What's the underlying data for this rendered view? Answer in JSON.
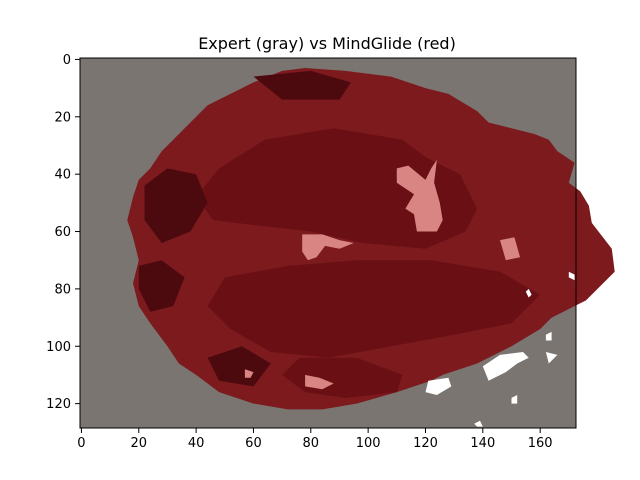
{
  "chart_data": {
    "type": "heatmap",
    "title": "Expert (gray) vs MindGlide (red)",
    "xlabel": "",
    "ylabel": "",
    "xlim": [
      -0.5,
      172.5
    ],
    "ylim": [
      128.5,
      -0.5
    ],
    "x_ticks": [
      0,
      20,
      40,
      60,
      80,
      100,
      120,
      140,
      160
    ],
    "y_ticks": [
      0,
      20,
      40,
      60,
      80,
      100,
      120
    ],
    "grid": false,
    "colors": {
      "background": "#7a7571",
      "dark_red": "#4d0a0e",
      "mid_red": "#6a1015",
      "light_red": "#7c1a1e",
      "pink": "#d88584",
      "white": "#ffffff"
    },
    "brain_outline": [
      [
        78,
        3
      ],
      [
        92,
        4
      ],
      [
        108,
        6
      ],
      [
        120,
        10
      ],
      [
        128,
        12
      ],
      [
        138,
        18
      ],
      [
        142,
        22
      ],
      [
        158,
        26
      ],
      [
        163,
        28
      ],
      [
        166,
        32
      ],
      [
        172,
        36
      ],
      [
        170,
        43
      ],
      [
        174,
        46
      ],
      [
        177,
        51
      ],
      [
        178,
        57
      ],
      [
        185,
        66
      ],
      [
        186,
        74
      ],
      [
        176,
        84
      ],
      [
        164,
        90
      ],
      [
        160,
        94
      ],
      [
        150,
        100
      ],
      [
        138,
        106
      ],
      [
        126,
        110
      ],
      [
        122,
        112
      ],
      [
        110,
        116
      ],
      [
        96,
        120
      ],
      [
        84,
        122
      ],
      [
        72,
        122
      ],
      [
        60,
        120
      ],
      [
        48,
        116
      ],
      [
        40,
        110
      ],
      [
        34,
        106
      ],
      [
        30,
        100
      ],
      [
        24,
        92
      ],
      [
        20,
        86
      ],
      [
        18,
        78
      ],
      [
        20,
        70
      ],
      [
        18,
        62
      ],
      [
        16,
        56
      ],
      [
        18,
        48
      ],
      [
        20,
        42
      ],
      [
        24,
        38
      ],
      [
        28,
        32
      ],
      [
        32,
        28
      ],
      [
        38,
        22
      ],
      [
        44,
        16
      ],
      [
        52,
        12
      ],
      [
        60,
        8
      ],
      [
        70,
        4
      ]
    ],
    "mid_red_regions": [
      [
        [
          64,
          28
        ],
        [
          88,
          24
        ],
        [
          112,
          28
        ],
        [
          120,
          34
        ],
        [
          132,
          40
        ],
        [
          138,
          52
        ],
        [
          134,
          60
        ],
        [
          120,
          66
        ],
        [
          98,
          64
        ],
        [
          80,
          60
        ],
        [
          62,
          58
        ],
        [
          46,
          56
        ],
        [
          40,
          48
        ],
        [
          48,
          38
        ]
      ],
      [
        [
          50,
          76
        ],
        [
          72,
          72
        ],
        [
          96,
          70
        ],
        [
          122,
          70
        ],
        [
          146,
          74
        ],
        [
          160,
          82
        ],
        [
          150,
          92
        ],
        [
          130,
          96
        ],
        [
          108,
          100
        ],
        [
          86,
          104
        ],
        [
          66,
          102
        ],
        [
          52,
          94
        ],
        [
          44,
          86
        ]
      ],
      [
        [
          76,
          104
        ],
        [
          96,
          104
        ],
        [
          112,
          110
        ],
        [
          110,
          116
        ],
        [
          92,
          118
        ],
        [
          78,
          116
        ],
        [
          70,
          110
        ]
      ]
    ],
    "dark_red_regions": [
      [
        [
          22,
          44
        ],
        [
          30,
          38
        ],
        [
          40,
          40
        ],
        [
          44,
          50
        ],
        [
          38,
          60
        ],
        [
          28,
          64
        ],
        [
          22,
          56
        ]
      ],
      [
        [
          20,
          72
        ],
        [
          28,
          70
        ],
        [
          36,
          76
        ],
        [
          32,
          86
        ],
        [
          24,
          88
        ],
        [
          20,
          80
        ]
      ],
      [
        [
          44,
          104
        ],
        [
          56,
          100
        ],
        [
          66,
          106
        ],
        [
          60,
          114
        ],
        [
          48,
          112
        ]
      ],
      [
        [
          60,
          6
        ],
        [
          80,
          4
        ],
        [
          94,
          8
        ],
        [
          90,
          14
        ],
        [
          70,
          14
        ]
      ]
    ],
    "pink_regions": [
      [
        [
          114,
          37
        ],
        [
          120,
          42
        ],
        [
          122,
          38
        ],
        [
          124,
          35
        ],
        [
          123,
          43
        ],
        [
          125,
          50
        ],
        [
          126,
          56
        ],
        [
          124,
          60
        ],
        [
          117,
          60
        ],
        [
          116,
          54
        ],
        [
          113,
          52
        ],
        [
          116,
          47
        ],
        [
          110,
          43
        ],
        [
          110,
          38
        ]
      ],
      [
        [
          77,
          61
        ],
        [
          84,
          61
        ],
        [
          90,
          63
        ],
        [
          95,
          64
        ],
        [
          90,
          66
        ],
        [
          85,
          65
        ],
        [
          82,
          69
        ],
        [
          79,
          70
        ],
        [
          77,
          67
        ]
      ],
      [
        [
          146,
          63
        ],
        [
          151,
          62
        ],
        [
          153,
          69
        ],
        [
          148,
          70
        ]
      ],
      [
        [
          78,
          110
        ],
        [
          83,
          111
        ],
        [
          88,
          113
        ],
        [
          84,
          115
        ],
        [
          78,
          114
        ]
      ],
      [
        [
          57,
          108
        ],
        [
          60,
          109
        ],
        [
          59,
          111
        ],
        [
          57,
          111
        ]
      ]
    ],
    "white_regions": [
      [
        [
          140,
          107
        ],
        [
          146,
          103
        ],
        [
          154,
          102
        ],
        [
          156,
          104
        ],
        [
          152,
          106
        ],
        [
          148,
          109
        ],
        [
          142,
          112
        ]
      ],
      [
        [
          121,
          112
        ],
        [
          128,
          111
        ],
        [
          129,
          114
        ],
        [
          124,
          117
        ],
        [
          120,
          116
        ]
      ],
      [
        [
          162,
          102
        ],
        [
          166,
          103
        ],
        [
          163,
          106
        ]
      ],
      [
        [
          162,
          96
        ],
        [
          164,
          95
        ],
        [
          164,
          98
        ],
        [
          162,
          98
        ]
      ],
      [
        [
          170,
          74
        ],
        [
          172,
          75
        ],
        [
          172,
          77
        ],
        [
          170,
          76
        ]
      ],
      [
        [
          156,
          80
        ],
        [
          157,
          82
        ],
        [
          156,
          83
        ],
        [
          155,
          81
        ]
      ],
      [
        [
          137,
          127
        ],
        [
          139,
          126
        ],
        [
          140,
          128
        ],
        [
          138,
          128
        ]
      ],
      [
        [
          150,
          118
        ],
        [
          152,
          117
        ],
        [
          152,
          120
        ],
        [
          150,
          120
        ]
      ]
    ]
  }
}
